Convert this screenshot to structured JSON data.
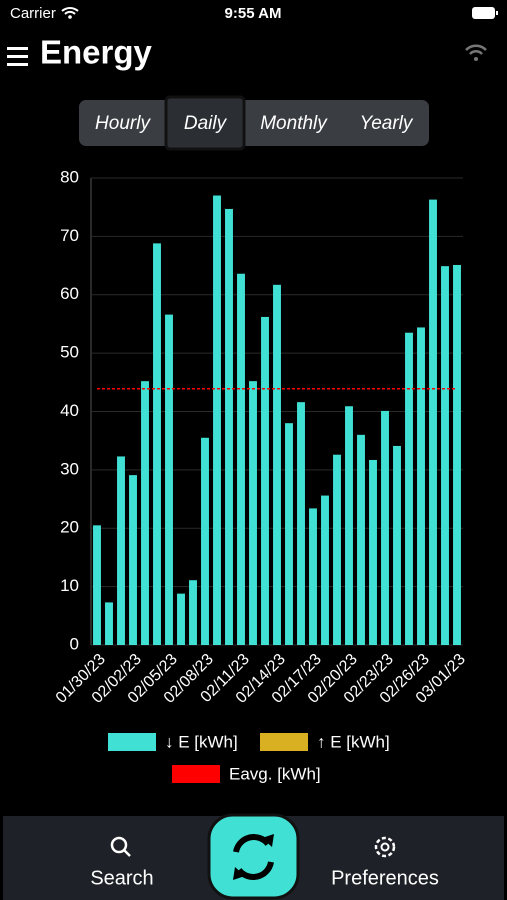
{
  "status": {
    "carrier": "Carrier",
    "time": "9:55 AM"
  },
  "header": {
    "title": "Energy"
  },
  "segments": {
    "items": [
      "Hourly",
      "Daily",
      "Monthly",
      "Yearly"
    ],
    "selected": 1
  },
  "tabs": [
    "Search",
    "Preferences"
  ],
  "chart_data": {
    "type": "bar",
    "categories": [
      "01/30/23",
      null,
      null,
      "02/02/23",
      null,
      null,
      "02/05/23",
      null,
      null,
      "02/08/23",
      null,
      null,
      "02/11/23",
      null,
      null,
      "02/14/23",
      null,
      null,
      "02/17/23",
      null,
      null,
      "02/20/23",
      null,
      null,
      "02/23/23",
      null,
      null,
      "02/26/23",
      null,
      null,
      "03/01/23"
    ],
    "series": [
      {
        "name": "↓ E [kWh]",
        "color": "#40e0d4",
        "values": [
          20.5,
          7.3,
          32.3,
          29.1,
          45.2,
          68.8,
          56.6,
          8.8,
          11.1,
          35.5,
          77,
          74.7,
          63.6,
          45.2,
          56.2,
          61.7,
          38,
          41.6,
          23.4,
          25.6,
          32.6,
          40.9,
          36,
          31.7,
          40.1,
          34.1,
          53.5,
          54.4,
          76.3,
          64.9,
          65.1
        ]
      }
    ],
    "legend_extra": [
      {
        "name": "↑ E [kWh]",
        "color": "#d8b022"
      }
    ],
    "reference_lines": [
      {
        "name": "Eavg. [kWh]",
        "color": "#ff0000",
        "value": 43.9
      }
    ],
    "ylim": [
      0,
      80
    ],
    "yticks": [
      0,
      10,
      20,
      30,
      40,
      50,
      60,
      70,
      80
    ],
    "grid": true
  }
}
